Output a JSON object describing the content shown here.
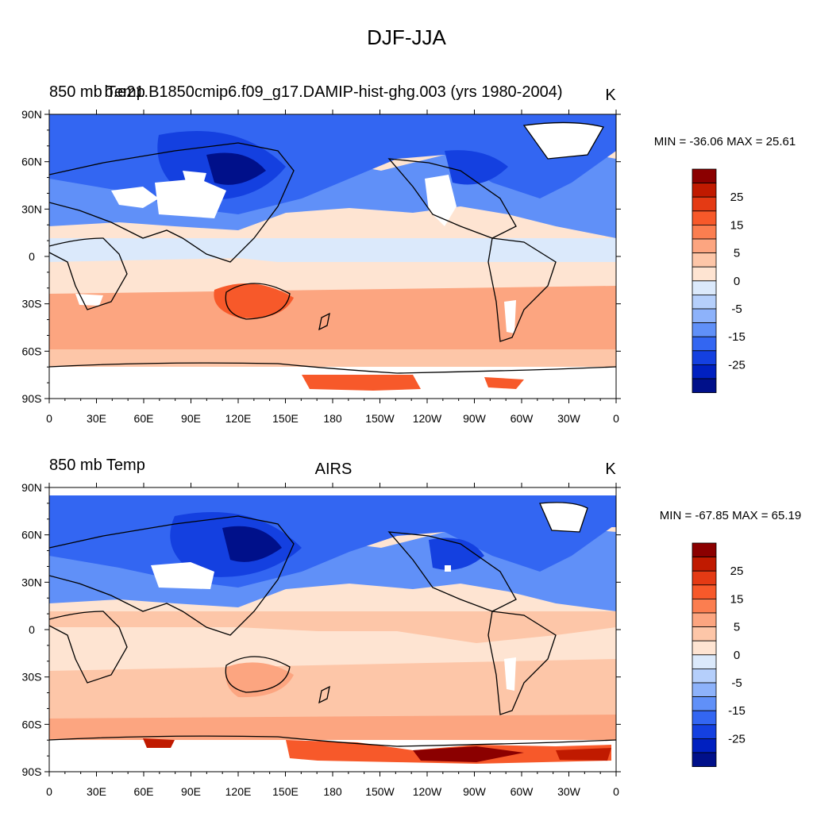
{
  "figure": {
    "title": "DJF-JJA"
  },
  "colorbar": {
    "levels": [
      "25",
      "15",
      "5",
      "0",
      "-5",
      "-15",
      "-25"
    ],
    "colors": [
      "#8b0000",
      "#c01a00",
      "#e43a14",
      "#f7592a",
      "#fb7e50",
      "#fca580",
      "#fdc6a8",
      "#fee4d2",
      "#dbe9fb",
      "#b5cffb",
      "#8db2fa",
      "#6090f8",
      "#3366f2",
      "#1440e0",
      "#0020c0",
      "#00108a"
    ]
  },
  "panels": [
    {
      "id": "model",
      "left_title": "850 mb Temp",
      "center_title": "b.e21.B1850cmip6.f09_g17.DAMIP-hist-ghg.003 (yrs 1980-2004)",
      "units": "K",
      "stats": "MIN = -36.06 MAX =  25.61"
    },
    {
      "id": "obs",
      "left_title": "850 mb Temp",
      "center_title": "AIRS",
      "units": "K",
      "stats": "MIN = -67.85 MAX =  65.19"
    }
  ],
  "axes": {
    "lon_labels": [
      "0",
      "30E",
      "60E",
      "90E",
      "120E",
      "150E",
      "180",
      "150W",
      "120W",
      "90W",
      "60W",
      "30W",
      "0"
    ],
    "lat_labels": [
      "90N",
      "60N",
      "30N",
      "0",
      "30S",
      "60S",
      "90S"
    ]
  }
}
